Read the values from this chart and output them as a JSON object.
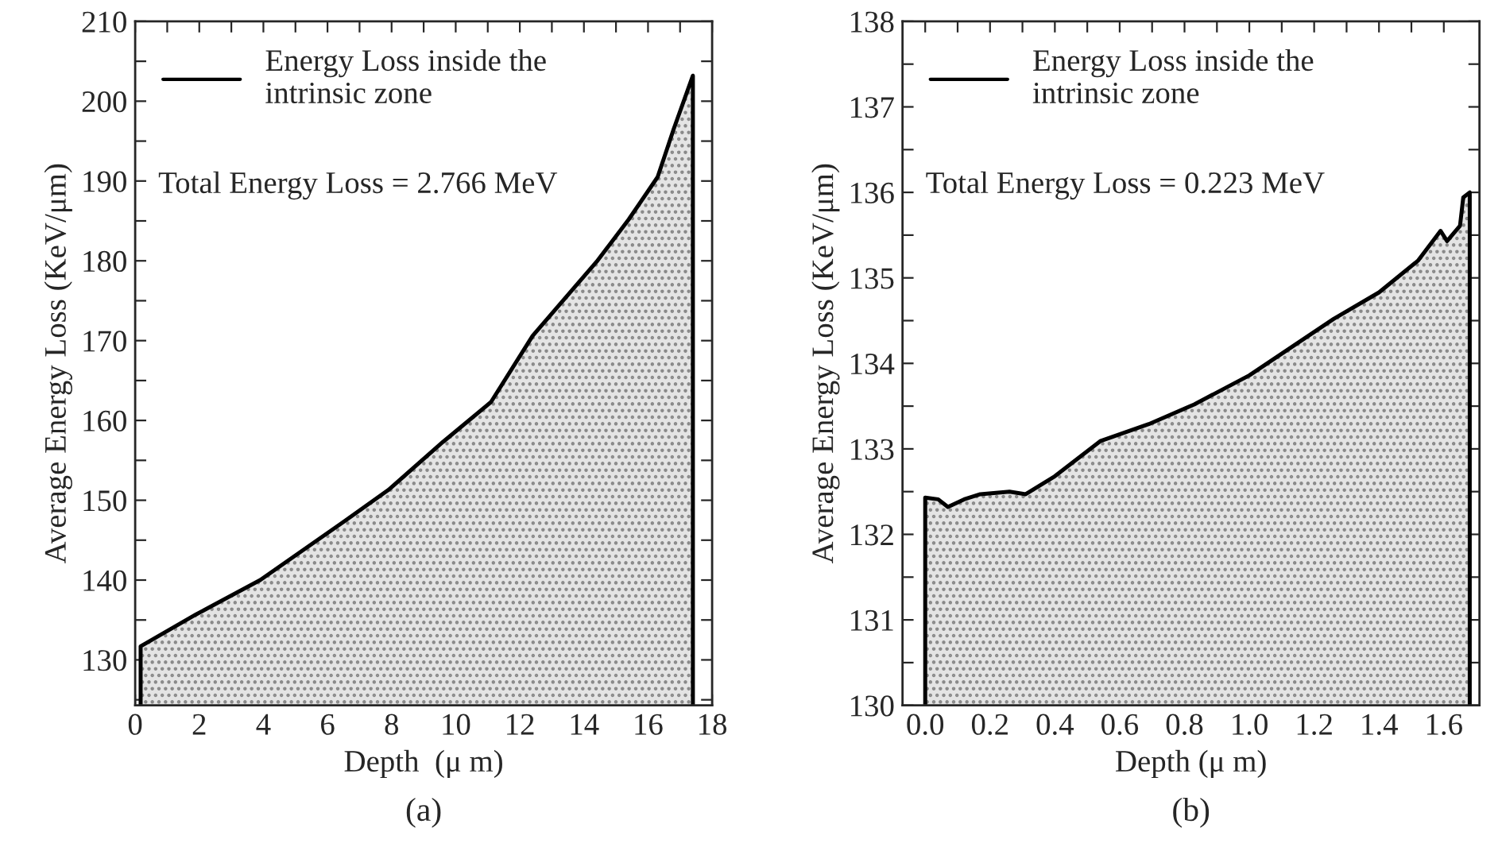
{
  "chart_data": [
    {
      "type": "area",
      "title": "(a)",
      "xlabel": "Depth  (μ m)",
      "ylabel": "Average Energy Loss (KeV/μm)",
      "legend": "top left",
      "annotations": [
        "Total Energy Loss = 2.766 MeV"
      ],
      "xlim": [
        0,
        18
      ],
      "ylim": [
        124.3,
        210
      ],
      "xticks": [
        0,
        {
          "value": 1,
          "label": null
        },
        2,
        {
          "value": 3,
          "label": null
        },
        4,
        {
          "value": 5,
          "label": null
        },
        6,
        {
          "value": 7,
          "label": null
        },
        8,
        {
          "value": 9,
          "label": null
        },
        10,
        {
          "value": 11,
          "label": null
        },
        12,
        {
          "value": 13,
          "label": null
        },
        14,
        {
          "value": 15,
          "label": null
        },
        16,
        {
          "value": 17,
          "label": null
        },
        18
      ],
      "yticks": [
        {
          "value": 125,
          "label": null
        },
        130,
        {
          "value": 135,
          "label": null
        },
        140,
        {
          "value": 145,
          "label": null
        },
        150,
        {
          "value": 155,
          "label": null
        },
        160,
        {
          "value": 165,
          "label": null
        },
        170,
        {
          "value": 175,
          "label": null
        },
        180,
        {
          "value": 185,
          "label": null
        },
        190,
        {
          "value": 195,
          "label": null
        },
        200,
        {
          "value": 205,
          "label": null
        },
        210
      ],
      "series": [
        {
          "name": "Energy Loss inside the\nintrinsic zone",
          "color": "#000000",
          "x": [
            0.17,
            1.9,
            3.9,
            6.5,
            7.9,
            9.6,
            11.1,
            12.4,
            14.4,
            15.4,
            16.3,
            16.8,
            17.4
          ],
          "values": [
            131.7,
            135.7,
            140.0,
            147.3,
            151.3,
            157.3,
            162.3,
            170.6,
            179.9,
            185.2,
            190.5,
            196.5,
            203.2
          ]
        }
      ]
    },
    {
      "type": "area",
      "title": "(b)",
      "xlabel": "Depth (μ m)",
      "ylabel": "Average Energy Loss (KeV/μm)",
      "legend": "top left",
      "annotations": [
        "Total Energy Loss = 0.223 MeV"
      ],
      "xlim": [
        -0.07,
        1.71
      ],
      "ylim": [
        130,
        138
      ],
      "xticks": [
        "0.0",
        {
          "value": 0.1,
          "label": null
        },
        0.2,
        {
          "value": 0.3,
          "label": null
        },
        0.4,
        {
          "value": 0.5,
          "label": null
        },
        0.6,
        {
          "value": 0.7,
          "label": null
        },
        0.8,
        {
          "value": 0.9,
          "label": null
        },
        {
          "value": 1.0,
          "label": "1.0"
        },
        {
          "value": 1.1,
          "label": null
        },
        1.2,
        {
          "value": 1.3,
          "label": null
        },
        1.4,
        {
          "value": 1.5,
          "label": null
        },
        1.6
      ],
      "yticks": [
        130,
        {
          "value": 130.5,
          "label": null
        },
        131,
        {
          "value": 131.5,
          "label": null
        },
        132,
        {
          "value": 132.5,
          "label": null
        },
        133,
        {
          "value": 133.5,
          "label": null
        },
        134,
        {
          "value": 134.5,
          "label": null
        },
        135,
        {
          "value": 135.5,
          "label": null
        },
        136,
        {
          "value": 136.5,
          "label": null
        },
        137,
        {
          "value": 137.5,
          "label": null
        },
        138
      ],
      "series": [
        {
          "name": "Energy Loss inside the\nintrinsic zone",
          "color": "#000000",
          "x": [
            0.0,
            0.04,
            0.07,
            0.12,
            0.17,
            0.26,
            0.31,
            0.4,
            0.54,
            0.69,
            0.83,
            1.0,
            1.26,
            1.4,
            1.52,
            1.59,
            1.61,
            1.65,
            1.66,
            1.68
          ],
          "values": [
            132.43,
            132.41,
            132.32,
            132.41,
            132.47,
            132.5,
            132.47,
            132.68,
            133.09,
            133.29,
            133.52,
            133.86,
            134.52,
            134.83,
            135.2,
            135.55,
            135.43,
            135.61,
            135.94,
            136.0
          ]
        }
      ]
    }
  ]
}
